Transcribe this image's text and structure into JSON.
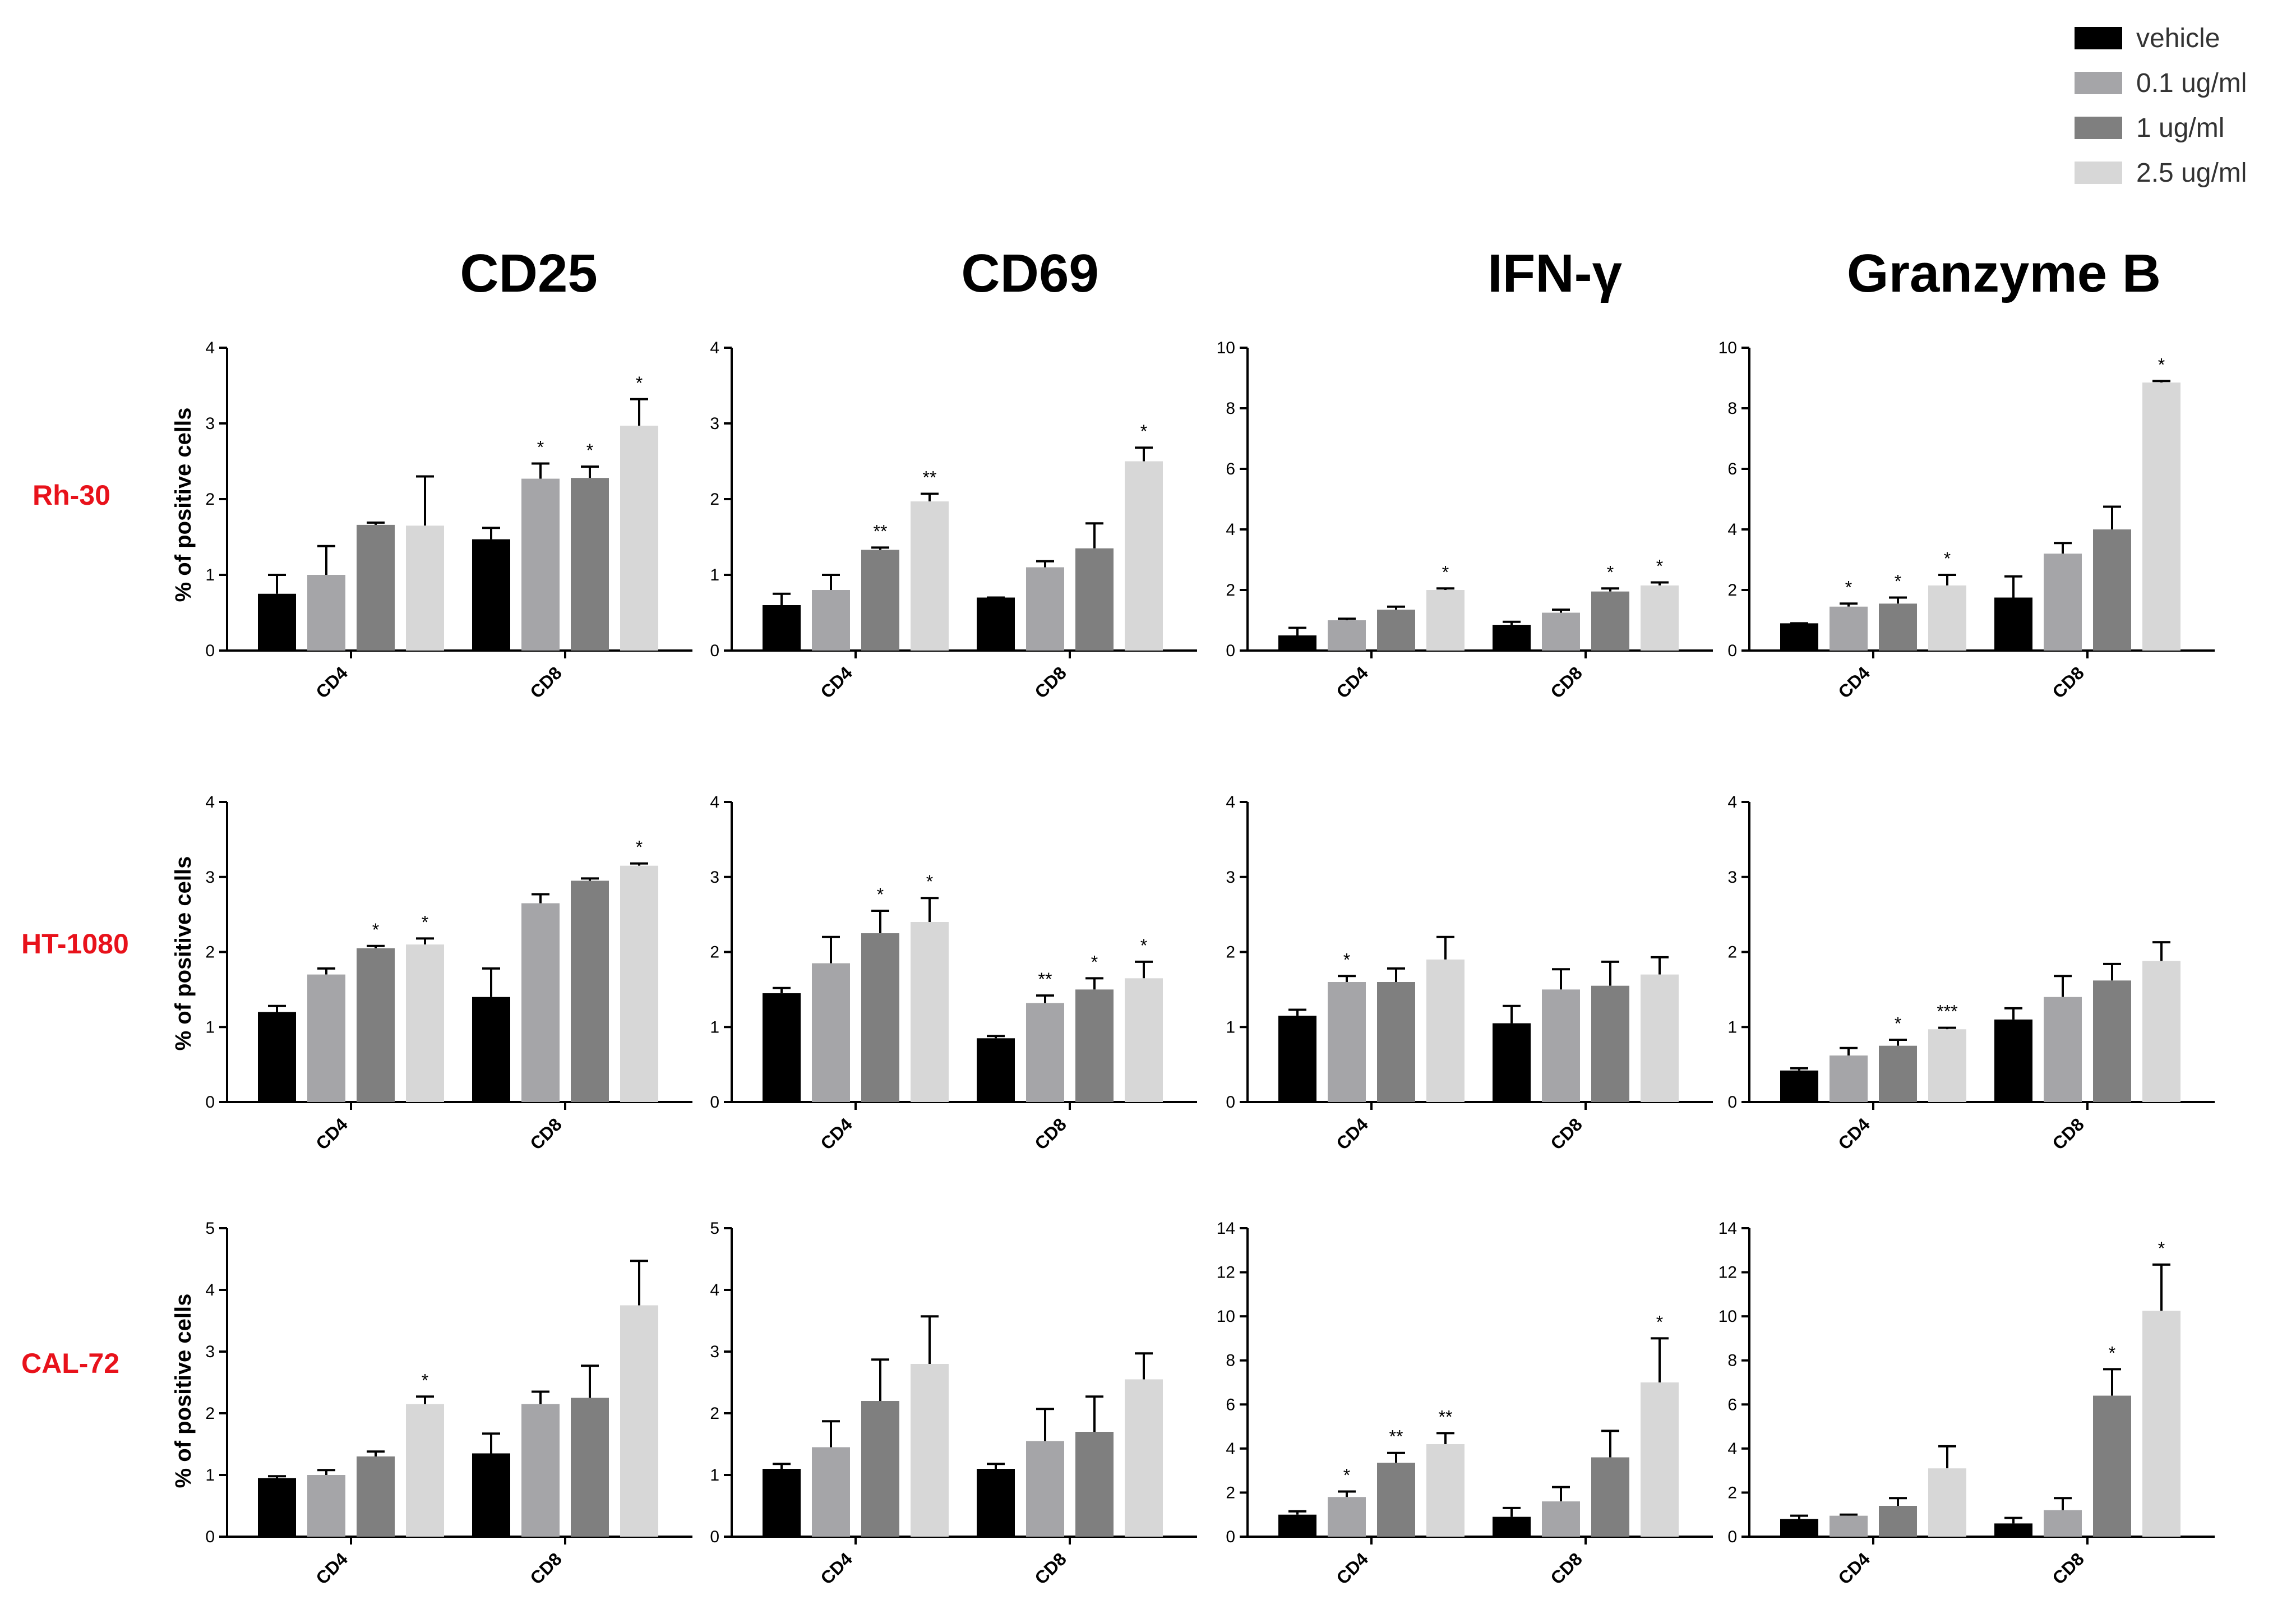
{
  "legend": {
    "entries": [
      {
        "label": "vehicle",
        "color": "#000000"
      },
      {
        "label": "0.1 ug/ml",
        "color": "#a5a5a8"
      },
      {
        "label": "1 ug/ml",
        "color": "#7f7f7f"
      },
      {
        "label": "2.5 ug/ml",
        "color": "#d7d7d7"
      }
    ]
  },
  "column_titles": [
    "CD25",
    "CD69",
    "IFN-γ",
    "Granzyme B"
  ],
  "row_labels": [
    "Rh-30",
    "HT-1080",
    "CAL-72"
  ],
  "ylabel": "% of positive cells",
  "chart_data": [
    {
      "type": "bar",
      "id": "rh30-cd25",
      "row": "Rh-30",
      "title": "CD25",
      "ylabel": "% of positive cells",
      "categories": [
        "CD4",
        "CD8"
      ],
      "ylim": [
        0,
        4
      ],
      "yticks": [
        0,
        1,
        2,
        3,
        4
      ],
      "series": [
        {
          "name": "vehicle",
          "values": [
            0.75,
            1.47
          ],
          "errors": [
            0.25,
            0.15
          ],
          "sig": [
            "",
            ""
          ]
        },
        {
          "name": "0.1 ug/ml",
          "values": [
            1.0,
            2.27
          ],
          "errors": [
            0.38,
            0.2
          ],
          "sig": [
            "",
            "*"
          ]
        },
        {
          "name": "1 ug/ml",
          "values": [
            1.66,
            2.28
          ],
          "errors": [
            0.03,
            0.15
          ],
          "sig": [
            "",
            "*"
          ]
        },
        {
          "name": "2.5 ug/ml",
          "values": [
            1.65,
            2.97
          ],
          "errors": [
            0.65,
            0.35
          ],
          "sig": [
            "",
            "*"
          ]
        }
      ]
    },
    {
      "type": "bar",
      "id": "rh30-cd69",
      "row": "Rh-30",
      "title": "CD69",
      "ylabel": "",
      "categories": [
        "CD4",
        "CD8"
      ],
      "ylim": [
        0,
        4
      ],
      "yticks": [
        0,
        1,
        2,
        3,
        4
      ],
      "series": [
        {
          "name": "vehicle",
          "values": [
            0.6,
            0.7
          ],
          "errors": [
            0.15,
            0.0
          ],
          "sig": [
            "",
            ""
          ]
        },
        {
          "name": "0.1 ug/ml",
          "values": [
            0.8,
            1.1
          ],
          "errors": [
            0.2,
            0.08
          ],
          "sig": [
            "",
            ""
          ]
        },
        {
          "name": "1 ug/ml",
          "values": [
            1.33,
            1.35
          ],
          "errors": [
            0.03,
            0.33
          ],
          "sig": [
            "**",
            ""
          ]
        },
        {
          "name": "2.5 ug/ml",
          "values": [
            1.97,
            2.5
          ],
          "errors": [
            0.1,
            0.18
          ],
          "sig": [
            "**",
            "*"
          ]
        }
      ]
    },
    {
      "type": "bar",
      "id": "rh30-ifng",
      "row": "Rh-30",
      "title": "IFN-γ",
      "ylabel": "",
      "categories": [
        "CD4",
        "CD8"
      ],
      "ylim": [
        0,
        10
      ],
      "yticks": [
        0,
        2,
        4,
        6,
        8,
        10
      ],
      "series": [
        {
          "name": "vehicle",
          "values": [
            0.5,
            0.85
          ],
          "errors": [
            0.25,
            0.1
          ],
          "sig": [
            "",
            ""
          ]
        },
        {
          "name": "0.1 ug/ml",
          "values": [
            1.0,
            1.25
          ],
          "errors": [
            0.05,
            0.1
          ],
          "sig": [
            "",
            ""
          ]
        },
        {
          "name": "1 ug/ml",
          "values": [
            1.35,
            1.95
          ],
          "errors": [
            0.1,
            0.1
          ],
          "sig": [
            "",
            "*"
          ]
        },
        {
          "name": "2.5 ug/ml",
          "values": [
            2.0,
            2.15
          ],
          "errors": [
            0.05,
            0.1
          ],
          "sig": [
            "*",
            "*"
          ]
        }
      ]
    },
    {
      "type": "bar",
      "id": "rh30-gzmb",
      "row": "Rh-30",
      "title": "Granzyme B",
      "ylabel": "",
      "categories": [
        "CD4",
        "CD8"
      ],
      "ylim": [
        0,
        10
      ],
      "yticks": [
        0,
        2,
        4,
        6,
        8,
        10
      ],
      "series": [
        {
          "name": "vehicle",
          "values": [
            0.9,
            1.75
          ],
          "errors": [
            0.0,
            0.7
          ],
          "sig": [
            "",
            ""
          ]
        },
        {
          "name": "0.1 ug/ml",
          "values": [
            1.45,
            3.2
          ],
          "errors": [
            0.1,
            0.35
          ],
          "sig": [
            "*",
            ""
          ]
        },
        {
          "name": "1 ug/ml",
          "values": [
            1.55,
            4.0
          ],
          "errors": [
            0.2,
            0.75
          ],
          "sig": [
            "*",
            ""
          ]
        },
        {
          "name": "2.5 ug/ml",
          "values": [
            2.15,
            8.85
          ],
          "errors": [
            0.35,
            0.05
          ],
          "sig": [
            "*",
            "*"
          ]
        }
      ]
    },
    {
      "type": "bar",
      "id": "ht1080-cd25",
      "row": "HT-1080",
      "title": "CD25",
      "ylabel": "% of positive cells",
      "categories": [
        "CD4",
        "CD8"
      ],
      "ylim": [
        0,
        4
      ],
      "yticks": [
        0,
        1,
        2,
        3,
        4
      ],
      "series": [
        {
          "name": "vehicle",
          "values": [
            1.2,
            1.4
          ],
          "errors": [
            0.08,
            0.38
          ],
          "sig": [
            "",
            ""
          ]
        },
        {
          "name": "0.1 ug/ml",
          "values": [
            1.7,
            2.65
          ],
          "errors": [
            0.08,
            0.12
          ],
          "sig": [
            "",
            ""
          ]
        },
        {
          "name": "1 ug/ml",
          "values": [
            2.05,
            2.95
          ],
          "errors": [
            0.03,
            0.03
          ],
          "sig": [
            "*",
            ""
          ]
        },
        {
          "name": "2.5 ug/ml",
          "values": [
            2.1,
            3.15
          ],
          "errors": [
            0.08,
            0.03
          ],
          "sig": [
            "*",
            "*"
          ]
        }
      ]
    },
    {
      "type": "bar",
      "id": "ht1080-cd69",
      "row": "HT-1080",
      "title": "CD69",
      "ylabel": "",
      "categories": [
        "CD4",
        "CD8"
      ],
      "ylim": [
        0,
        4
      ],
      "yticks": [
        0,
        1,
        2,
        3,
        4
      ],
      "series": [
        {
          "name": "vehicle",
          "values": [
            1.45,
            0.85
          ],
          "errors": [
            0.07,
            0.03
          ],
          "sig": [
            "",
            ""
          ]
        },
        {
          "name": "0.1 ug/ml",
          "values": [
            1.85,
            1.32
          ],
          "errors": [
            0.35,
            0.1
          ],
          "sig": [
            "",
            "**"
          ]
        },
        {
          "name": "1 ug/ml",
          "values": [
            2.25,
            1.5
          ],
          "errors": [
            0.3,
            0.15
          ],
          "sig": [
            "*",
            "*"
          ]
        },
        {
          "name": "2.5 ug/ml",
          "values": [
            2.4,
            1.65
          ],
          "errors": [
            0.32,
            0.22
          ],
          "sig": [
            "*",
            "*"
          ]
        }
      ]
    },
    {
      "type": "bar",
      "id": "ht1080-ifng",
      "row": "HT-1080",
      "title": "IFN-γ",
      "ylabel": "",
      "categories": [
        "CD4",
        "CD8"
      ],
      "ylim": [
        0,
        4
      ],
      "yticks": [
        0,
        1,
        2,
        3,
        4
      ],
      "series": [
        {
          "name": "vehicle",
          "values": [
            1.15,
            1.05
          ],
          "errors": [
            0.08,
            0.23
          ],
          "sig": [
            "",
            ""
          ]
        },
        {
          "name": "0.1 ug/ml",
          "values": [
            1.6,
            1.5
          ],
          "errors": [
            0.08,
            0.27
          ],
          "sig": [
            "*",
            ""
          ]
        },
        {
          "name": "1 ug/ml",
          "values": [
            1.6,
            1.55
          ],
          "errors": [
            0.18,
            0.32
          ],
          "sig": [
            "",
            ""
          ]
        },
        {
          "name": "2.5 ug/ml",
          "values": [
            1.9,
            1.7
          ],
          "errors": [
            0.3,
            0.23
          ],
          "sig": [
            "",
            ""
          ]
        }
      ]
    },
    {
      "type": "bar",
      "id": "ht1080-gzmb",
      "row": "HT-1080",
      "title": "Granzyme B",
      "ylabel": "",
      "categories": [
        "CD4",
        "CD8"
      ],
      "ylim": [
        0,
        4
      ],
      "yticks": [
        0,
        1,
        2,
        3,
        4
      ],
      "series": [
        {
          "name": "vehicle",
          "values": [
            0.42,
            1.1
          ],
          "errors": [
            0.03,
            0.15
          ],
          "sig": [
            "",
            ""
          ]
        },
        {
          "name": "0.1 ug/ml",
          "values": [
            0.62,
            1.4
          ],
          "errors": [
            0.1,
            0.28
          ],
          "sig": [
            "",
            ""
          ]
        },
        {
          "name": "1 ug/ml",
          "values": [
            0.75,
            1.62
          ],
          "errors": [
            0.08,
            0.22
          ],
          "sig": [
            "*",
            ""
          ]
        },
        {
          "name": "2.5 ug/ml",
          "values": [
            0.97,
            1.88
          ],
          "errors": [
            0.02,
            0.25
          ],
          "sig": [
            "***",
            ""
          ]
        }
      ]
    },
    {
      "type": "bar",
      "id": "cal72-cd25",
      "row": "CAL-72",
      "title": "CD25",
      "ylabel": "% of positive cells",
      "categories": [
        "CD4",
        "CD8"
      ],
      "ylim": [
        0,
        5
      ],
      "yticks": [
        0,
        1,
        2,
        3,
        4,
        5
      ],
      "series": [
        {
          "name": "vehicle",
          "values": [
            0.95,
            1.35
          ],
          "errors": [
            0.03,
            0.32
          ],
          "sig": [
            "",
            ""
          ]
        },
        {
          "name": "0.1 ug/ml",
          "values": [
            1.0,
            2.15
          ],
          "errors": [
            0.08,
            0.2
          ],
          "sig": [
            "",
            ""
          ]
        },
        {
          "name": "1 ug/ml",
          "values": [
            1.3,
            2.25
          ],
          "errors": [
            0.08,
            0.52
          ],
          "sig": [
            "",
            ""
          ]
        },
        {
          "name": "2.5 ug/ml",
          "values": [
            2.15,
            3.75
          ],
          "errors": [
            0.12,
            0.72
          ],
          "sig": [
            "*",
            ""
          ]
        }
      ]
    },
    {
      "type": "bar",
      "id": "cal72-cd69",
      "row": "CAL-72",
      "title": "CD69",
      "ylabel": "",
      "categories": [
        "CD4",
        "CD8"
      ],
      "ylim": [
        0,
        5
      ],
      "yticks": [
        0,
        1,
        2,
        3,
        4,
        5
      ],
      "series": [
        {
          "name": "vehicle",
          "values": [
            1.1,
            1.1
          ],
          "errors": [
            0.08,
            0.08
          ],
          "sig": [
            "",
            ""
          ]
        },
        {
          "name": "0.1 ug/ml",
          "values": [
            1.45,
            1.55
          ],
          "errors": [
            0.42,
            0.52
          ],
          "sig": [
            "",
            ""
          ]
        },
        {
          "name": "1 ug/ml",
          "values": [
            2.2,
            1.7
          ],
          "errors": [
            0.67,
            0.57
          ],
          "sig": [
            "",
            ""
          ]
        },
        {
          "name": "2.5 ug/ml",
          "values": [
            2.8,
            2.55
          ],
          "errors": [
            0.77,
            0.42
          ],
          "sig": [
            "",
            ""
          ]
        }
      ]
    },
    {
      "type": "bar",
      "id": "cal72-ifng",
      "row": "CAL-72",
      "title": "IFN-γ",
      "ylabel": "",
      "categories": [
        "CD4",
        "CD8"
      ],
      "ylim": [
        0,
        14
      ],
      "yticks": [
        0,
        2,
        4,
        6,
        8,
        10,
        12,
        14
      ],
      "series": [
        {
          "name": "vehicle",
          "values": [
            1.0,
            0.9
          ],
          "errors": [
            0.15,
            0.4
          ],
          "sig": [
            "",
            ""
          ]
        },
        {
          "name": "0.1 ug/ml",
          "values": [
            1.8,
            1.6
          ],
          "errors": [
            0.25,
            0.65
          ],
          "sig": [
            "*",
            ""
          ]
        },
        {
          "name": "1 ug/ml",
          "values": [
            3.35,
            3.6
          ],
          "errors": [
            0.45,
            1.2
          ],
          "sig": [
            "**",
            ""
          ]
        },
        {
          "name": "2.5 ug/ml",
          "values": [
            4.2,
            7.0
          ],
          "errors": [
            0.5,
            2.0
          ],
          "sig": [
            "**",
            "*"
          ]
        }
      ]
    },
    {
      "type": "bar",
      "id": "cal72-gzmb",
      "row": "CAL-72",
      "title": "Granzyme B",
      "ylabel": "",
      "categories": [
        "CD4",
        "CD8"
      ],
      "ylim": [
        0,
        14
      ],
      "yticks": [
        0,
        2,
        4,
        6,
        8,
        10,
        12,
        14
      ],
      "series": [
        {
          "name": "vehicle",
          "values": [
            0.8,
            0.6
          ],
          "errors": [
            0.15,
            0.25
          ],
          "sig": [
            "",
            ""
          ]
        },
        {
          "name": "0.1 ug/ml",
          "values": [
            0.95,
            1.2
          ],
          "errors": [
            0.05,
            0.55
          ],
          "sig": [
            "",
            ""
          ]
        },
        {
          "name": "1 ug/ml",
          "values": [
            1.4,
            6.4
          ],
          "errors": [
            0.35,
            1.2
          ],
          "sig": [
            "",
            "*"
          ]
        },
        {
          "name": "2.5 ug/ml",
          "values": [
            3.1,
            10.25
          ],
          "errors": [
            1.0,
            2.1
          ],
          "sig": [
            "",
            "*"
          ]
        }
      ]
    }
  ]
}
